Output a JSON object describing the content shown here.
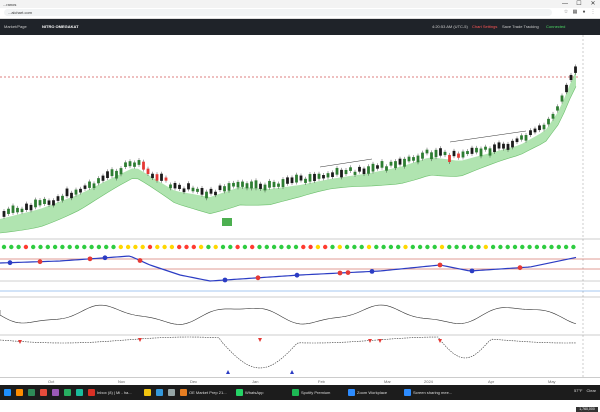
{
  "window": {
    "title": "...ranos",
    "controls": [
      "—",
      "☐",
      "✕"
    ]
  },
  "browser": {
    "url": "...alchart.com",
    "icons": [
      "star-icon",
      "extension-icon",
      "profile-icon",
      "menu-icon"
    ]
  },
  "app_header": {
    "left_items": [
      "Market/Page",
      "NITRO OMEGAKAT"
    ],
    "time": "4:20:53 AM (UTC-5)",
    "status_items": [
      "Chart Settings",
      "Save Trade Tracking",
      "Connected"
    ]
  },
  "x_axis_ticks": [
    "Oct",
    "Nov",
    "Dec",
    "Jan",
    "Feb",
    "Mar",
    "2024",
    "Apr",
    "May"
  ],
  "price_label": "1,760,000",
  "taskbar": {
    "items": [
      {
        "label": "",
        "color": "#1e90ff"
      },
      {
        "label": "",
        "color": "#ff8c00"
      },
      {
        "label": "",
        "color": "#2e8b57"
      },
      {
        "label": "",
        "color": "#e74c3c"
      },
      {
        "label": "",
        "color": "#9b59b6"
      },
      {
        "label": "",
        "color": "#27ae60"
      },
      {
        "label": "",
        "color": "#1abc9c"
      },
      {
        "label": "Inbox (8) | Mi - ha...",
        "color": "#d93025"
      },
      {
        "label": "",
        "color": "#f1c40f"
      },
      {
        "label": "",
        "color": "#3498db"
      },
      {
        "label": "",
        "color": "#95a5a6"
      },
      {
        "label": "OE Market Prep 21...",
        "color": "#e67e22"
      },
      {
        "label": "WhatsApp",
        "color": "#25d366"
      },
      {
        "label": "Spotify Premium",
        "color": "#1db954"
      },
      {
        "label": "Zoom Workplace",
        "color": "#2d8cff"
      },
      {
        "label": "Screen sharing mee...",
        "color": "#2d8cff"
      }
    ],
    "tray": [
      "57°F",
      "Clear"
    ]
  },
  "dots_row_colors": [
    "#2ecc40",
    "#ff3b30",
    "#ffd700"
  ]
}
